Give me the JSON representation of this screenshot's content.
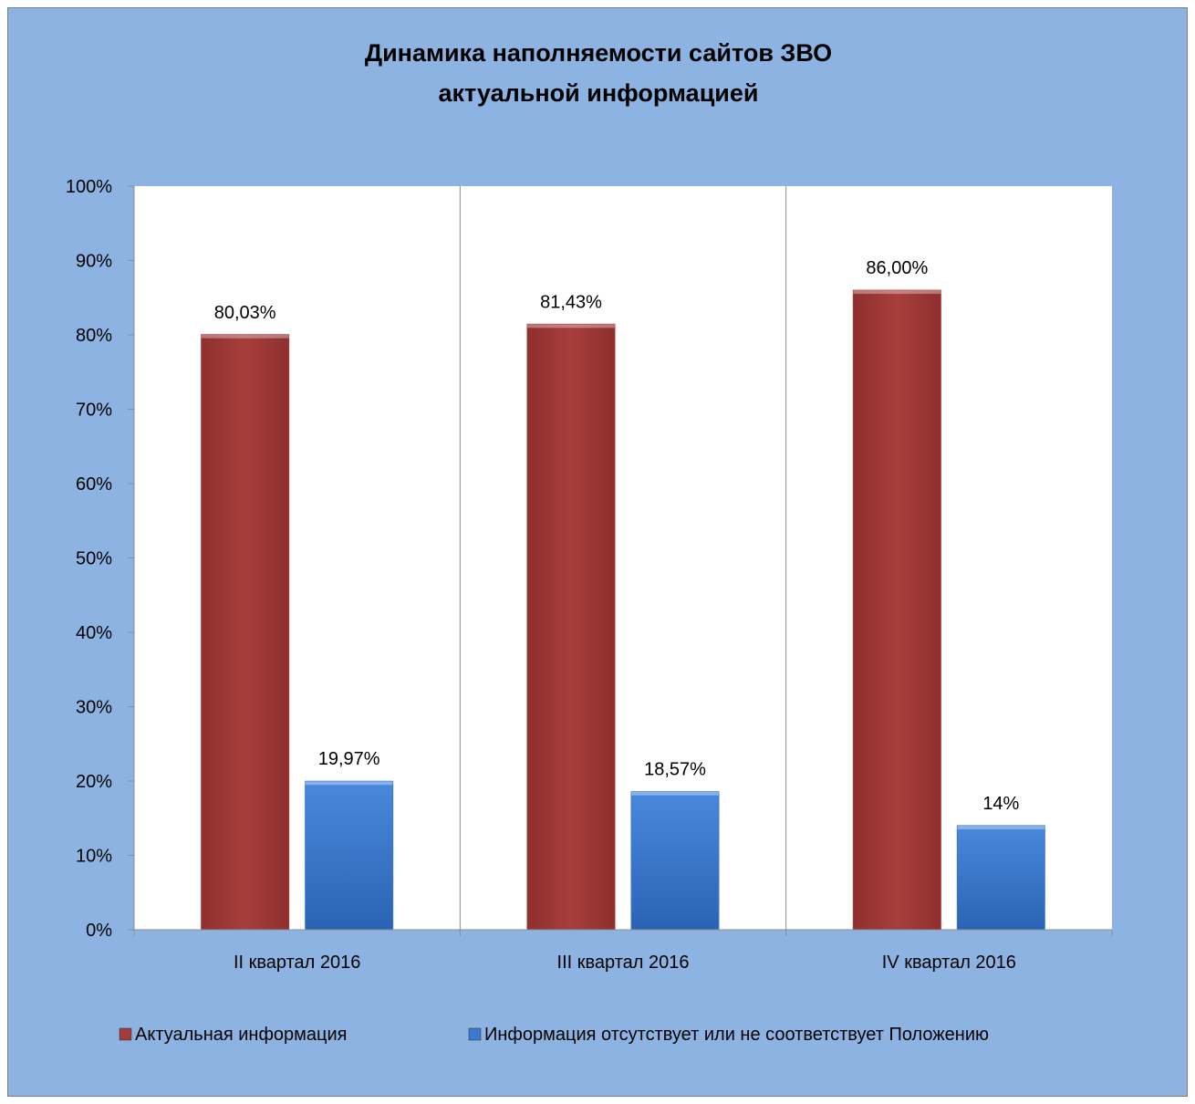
{
  "chart_data": {
    "type": "bar",
    "title_lines": [
      "Динамика наполняемости сайтов ЗВО",
      "актуальной информацией"
    ],
    "categories": [
      "II квартал 2016",
      "III квартал 2016",
      "IV квартал 2016"
    ],
    "series": [
      {
        "name": "Актуальная информация",
        "color": "#a23b3a",
        "values": [
          80.03,
          81.43,
          86.0
        ],
        "labels": [
          "80,03%",
          "81,43%",
          "86,00%"
        ]
      },
      {
        "name": "Информация отсутствует или не соответствует Положению",
        "color": "#3b79cf",
        "values": [
          19.97,
          18.57,
          14.0
        ],
        "labels": [
          "19,97%",
          "18,57%",
          "14%"
        ]
      }
    ],
    "yticks": [
      "0%",
      "10%",
      "20%",
      "30%",
      "40%",
      "50%",
      "60%",
      "70%",
      "80%",
      "90%",
      "100%"
    ],
    "ylim": [
      0,
      100
    ],
    "grid": "vertical category separators",
    "legend_position": "bottom"
  }
}
